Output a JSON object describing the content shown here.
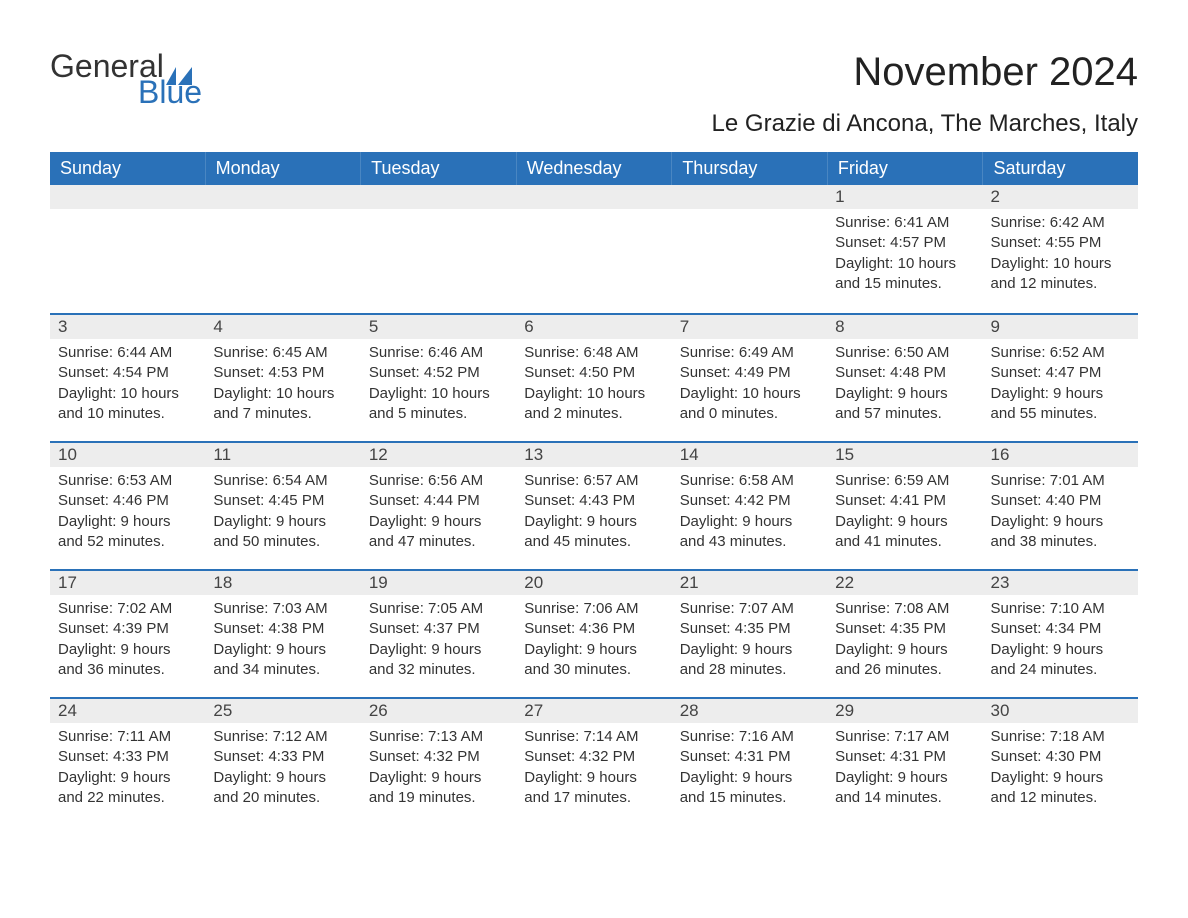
{
  "logo": {
    "top": "General",
    "bottom": "Blue"
  },
  "title": "November 2024",
  "location": "Le Grazie di Ancona, The Marches, Italy",
  "colors": {
    "header_bg": "#2a71b8",
    "header_text": "#ffffff",
    "row_divider": "#2a71b8",
    "daynum_bg": "#ededed",
    "text": "#333333",
    "logo_blue": "#2a71b8"
  },
  "typography": {
    "title_fontsize": 40,
    "location_fontsize": 24,
    "weekday_fontsize": 18,
    "daynum_fontsize": 17,
    "body_fontsize": 15,
    "logo_fontsize": 32
  },
  "weekdays": [
    "Sunday",
    "Monday",
    "Tuesday",
    "Wednesday",
    "Thursday",
    "Friday",
    "Saturday"
  ],
  "weeks": [
    [
      null,
      null,
      null,
      null,
      null,
      {
        "n": "1",
        "sunrise": "Sunrise: 6:41 AM",
        "sunset": "Sunset: 4:57 PM",
        "d1": "Daylight: 10 hours",
        "d2": "and 15 minutes."
      },
      {
        "n": "2",
        "sunrise": "Sunrise: 6:42 AM",
        "sunset": "Sunset: 4:55 PM",
        "d1": "Daylight: 10 hours",
        "d2": "and 12 minutes."
      }
    ],
    [
      {
        "n": "3",
        "sunrise": "Sunrise: 6:44 AM",
        "sunset": "Sunset: 4:54 PM",
        "d1": "Daylight: 10 hours",
        "d2": "and 10 minutes."
      },
      {
        "n": "4",
        "sunrise": "Sunrise: 6:45 AM",
        "sunset": "Sunset: 4:53 PM",
        "d1": "Daylight: 10 hours",
        "d2": "and 7 minutes."
      },
      {
        "n": "5",
        "sunrise": "Sunrise: 6:46 AM",
        "sunset": "Sunset: 4:52 PM",
        "d1": "Daylight: 10 hours",
        "d2": "and 5 minutes."
      },
      {
        "n": "6",
        "sunrise": "Sunrise: 6:48 AM",
        "sunset": "Sunset: 4:50 PM",
        "d1": "Daylight: 10 hours",
        "d2": "and 2 minutes."
      },
      {
        "n": "7",
        "sunrise": "Sunrise: 6:49 AM",
        "sunset": "Sunset: 4:49 PM",
        "d1": "Daylight: 10 hours",
        "d2": "and 0 minutes."
      },
      {
        "n": "8",
        "sunrise": "Sunrise: 6:50 AM",
        "sunset": "Sunset: 4:48 PM",
        "d1": "Daylight: 9 hours",
        "d2": "and 57 minutes."
      },
      {
        "n": "9",
        "sunrise": "Sunrise: 6:52 AM",
        "sunset": "Sunset: 4:47 PM",
        "d1": "Daylight: 9 hours",
        "d2": "and 55 minutes."
      }
    ],
    [
      {
        "n": "10",
        "sunrise": "Sunrise: 6:53 AM",
        "sunset": "Sunset: 4:46 PM",
        "d1": "Daylight: 9 hours",
        "d2": "and 52 minutes."
      },
      {
        "n": "11",
        "sunrise": "Sunrise: 6:54 AM",
        "sunset": "Sunset: 4:45 PM",
        "d1": "Daylight: 9 hours",
        "d2": "and 50 minutes."
      },
      {
        "n": "12",
        "sunrise": "Sunrise: 6:56 AM",
        "sunset": "Sunset: 4:44 PM",
        "d1": "Daylight: 9 hours",
        "d2": "and 47 minutes."
      },
      {
        "n": "13",
        "sunrise": "Sunrise: 6:57 AM",
        "sunset": "Sunset: 4:43 PM",
        "d1": "Daylight: 9 hours",
        "d2": "and 45 minutes."
      },
      {
        "n": "14",
        "sunrise": "Sunrise: 6:58 AM",
        "sunset": "Sunset: 4:42 PM",
        "d1": "Daylight: 9 hours",
        "d2": "and 43 minutes."
      },
      {
        "n": "15",
        "sunrise": "Sunrise: 6:59 AM",
        "sunset": "Sunset: 4:41 PM",
        "d1": "Daylight: 9 hours",
        "d2": "and 41 minutes."
      },
      {
        "n": "16",
        "sunrise": "Sunrise: 7:01 AM",
        "sunset": "Sunset: 4:40 PM",
        "d1": "Daylight: 9 hours",
        "d2": "and 38 minutes."
      }
    ],
    [
      {
        "n": "17",
        "sunrise": "Sunrise: 7:02 AM",
        "sunset": "Sunset: 4:39 PM",
        "d1": "Daylight: 9 hours",
        "d2": "and 36 minutes."
      },
      {
        "n": "18",
        "sunrise": "Sunrise: 7:03 AM",
        "sunset": "Sunset: 4:38 PM",
        "d1": "Daylight: 9 hours",
        "d2": "and 34 minutes."
      },
      {
        "n": "19",
        "sunrise": "Sunrise: 7:05 AM",
        "sunset": "Sunset: 4:37 PM",
        "d1": "Daylight: 9 hours",
        "d2": "and 32 minutes."
      },
      {
        "n": "20",
        "sunrise": "Sunrise: 7:06 AM",
        "sunset": "Sunset: 4:36 PM",
        "d1": "Daylight: 9 hours",
        "d2": "and 30 minutes."
      },
      {
        "n": "21",
        "sunrise": "Sunrise: 7:07 AM",
        "sunset": "Sunset: 4:35 PM",
        "d1": "Daylight: 9 hours",
        "d2": "and 28 minutes."
      },
      {
        "n": "22",
        "sunrise": "Sunrise: 7:08 AM",
        "sunset": "Sunset: 4:35 PM",
        "d1": "Daylight: 9 hours",
        "d2": "and 26 minutes."
      },
      {
        "n": "23",
        "sunrise": "Sunrise: 7:10 AM",
        "sunset": "Sunset: 4:34 PM",
        "d1": "Daylight: 9 hours",
        "d2": "and 24 minutes."
      }
    ],
    [
      {
        "n": "24",
        "sunrise": "Sunrise: 7:11 AM",
        "sunset": "Sunset: 4:33 PM",
        "d1": "Daylight: 9 hours",
        "d2": "and 22 minutes."
      },
      {
        "n": "25",
        "sunrise": "Sunrise: 7:12 AM",
        "sunset": "Sunset: 4:33 PM",
        "d1": "Daylight: 9 hours",
        "d2": "and 20 minutes."
      },
      {
        "n": "26",
        "sunrise": "Sunrise: 7:13 AM",
        "sunset": "Sunset: 4:32 PM",
        "d1": "Daylight: 9 hours",
        "d2": "and 19 minutes."
      },
      {
        "n": "27",
        "sunrise": "Sunrise: 7:14 AM",
        "sunset": "Sunset: 4:32 PM",
        "d1": "Daylight: 9 hours",
        "d2": "and 17 minutes."
      },
      {
        "n": "28",
        "sunrise": "Sunrise: 7:16 AM",
        "sunset": "Sunset: 4:31 PM",
        "d1": "Daylight: 9 hours",
        "d2": "and 15 minutes."
      },
      {
        "n": "29",
        "sunrise": "Sunrise: 7:17 AM",
        "sunset": "Sunset: 4:31 PM",
        "d1": "Daylight: 9 hours",
        "d2": "and 14 minutes."
      },
      {
        "n": "30",
        "sunrise": "Sunrise: 7:18 AM",
        "sunset": "Sunset: 4:30 PM",
        "d1": "Daylight: 9 hours",
        "d2": "and 12 minutes."
      }
    ]
  ]
}
